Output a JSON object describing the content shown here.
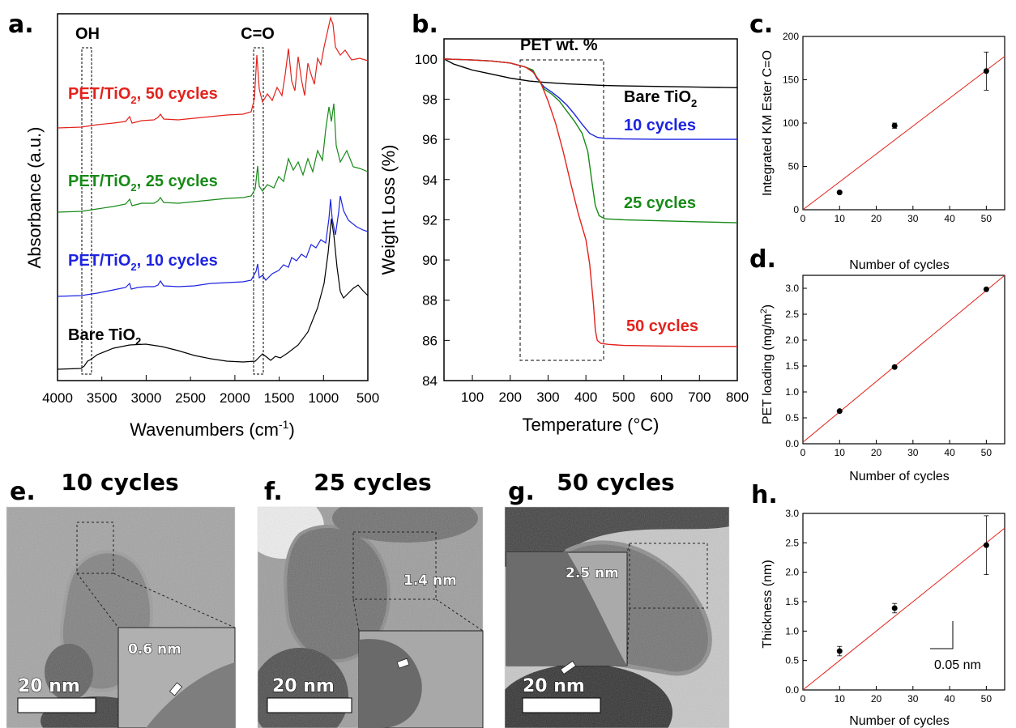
{
  "panel_labels": {
    "a": "a.",
    "b": "b.",
    "c": "c.",
    "d": "d.",
    "e": "e.",
    "f": "f.",
    "g": "g.",
    "h": "h."
  },
  "colors": {
    "red": "#e3221c",
    "green": "#178a17",
    "blue": "#1d24e0",
    "black": "#000000"
  },
  "chart_data": [
    {
      "panel": "a",
      "type": "line",
      "xlabel": "Wavenumbers (cm",
      "xlabel_sup": "-1",
      "xlabel_end": ")",
      "ylabel": "Absorbance (a.u.)",
      "xlim": [
        4000,
        500
      ],
      "xticks": [
        "4000",
        "3500",
        "3000",
        "2500",
        "2000",
        "1500",
        "1000",
        "500"
      ],
      "region_labels": [
        "OH",
        "C=O"
      ],
      "series": [
        {
          "name": "PET/TiO",
          "sub": "2",
          "suffix": ", 50 cycles",
          "color": "#e3221c"
        },
        {
          "name": "PET/TiO",
          "sub": "2",
          "suffix": ", 25 cycles",
          "color": "#178a17"
        },
        {
          "name": "PET/TiO",
          "sub": "2",
          "suffix": ", 10 cycles",
          "color": "#1d24e0"
        },
        {
          "name": "Bare TiO",
          "sub": "2",
          "suffix": "",
          "color": "#000000"
        }
      ]
    },
    {
      "panel": "b",
      "type": "line",
      "xlabel": "Temperature (°C)",
      "ylabel": "Weight Loss (%)",
      "xlim": [
        25,
        800
      ],
      "ylim": [
        84,
        101
      ],
      "xticks": [
        100,
        200,
        300,
        400,
        500,
        600,
        700,
        800
      ],
      "yticks": [
        84,
        86,
        88,
        90,
        92,
        94,
        96,
        98,
        100
      ],
      "box_label": "PET wt. %",
      "series": [
        {
          "name": "Bare TiO",
          "sub": "2",
          "color": "#000000",
          "x": [
            25,
            50,
            75,
            100,
            150,
            200,
            250,
            300,
            350,
            400,
            450,
            500,
            600,
            700,
            800
          ],
          "y": [
            100.0,
            99.75,
            99.6,
            99.45,
            99.25,
            99.05,
            98.9,
            98.82,
            98.76,
            98.72,
            98.68,
            98.66,
            98.63,
            98.6,
            98.57
          ]
        },
        {
          "name": "10 cycles",
          "color": "#1d24e0",
          "x": [
            25,
            100,
            150,
            200,
            240,
            260,
            270,
            290,
            310,
            330,
            350,
            370,
            390,
            410,
            430,
            450,
            500,
            600,
            700,
            800
          ],
          "y": [
            100.0,
            99.95,
            99.9,
            99.8,
            99.6,
            99.4,
            99.05,
            98.6,
            98.35,
            98.05,
            97.7,
            97.25,
            96.75,
            96.3,
            96.1,
            96.05,
            96.02,
            96.0,
            96.0,
            96.0
          ]
        },
        {
          "name": "25 cycles",
          "color": "#178a17",
          "x": [
            25,
            100,
            150,
            200,
            240,
            260,
            270,
            290,
            310,
            330,
            350,
            370,
            390,
            405,
            415,
            425,
            435,
            450,
            500,
            600,
            700,
            800
          ],
          "y": [
            100.0,
            99.95,
            99.9,
            99.8,
            99.6,
            99.45,
            99.1,
            98.5,
            98.25,
            97.9,
            97.4,
            96.9,
            96.3,
            95.4,
            94.0,
            92.7,
            92.2,
            92.05,
            92.0,
            91.95,
            91.9,
            91.85
          ]
        },
        {
          "name": "50 cycles",
          "color": "#e3221c",
          "x": [
            25,
            100,
            150,
            200,
            240,
            260,
            280,
            300,
            320,
            340,
            360,
            380,
            400,
            410,
            420,
            425,
            430,
            440,
            460,
            500,
            600,
            700,
            800
          ],
          "y": [
            100.0,
            99.95,
            99.9,
            99.8,
            99.6,
            99.35,
            98.85,
            97.9,
            96.8,
            95.4,
            93.8,
            92.3,
            91.0,
            89.8,
            87.8,
            86.5,
            86.0,
            85.85,
            85.8,
            85.75,
            85.72,
            85.7,
            85.7
          ]
        }
      ]
    },
    {
      "panel": "c",
      "type": "scatter",
      "xlabel": "Number of cycles",
      "ylabel": "Integrated KM Ester C=O",
      "xlim": [
        0,
        55
      ],
      "ylim": [
        0,
        200
      ],
      "xticks": [
        0,
        10,
        20,
        30,
        40,
        50
      ],
      "yticks": [
        0,
        50,
        100,
        150,
        200
      ],
      "x": [
        10,
        25,
        50
      ],
      "y": [
        20,
        97,
        160
      ],
      "err": [
        0,
        3,
        22
      ],
      "fit": {
        "x": [
          0,
          55
        ],
        "y": [
          0,
          177
        ]
      }
    },
    {
      "panel": "d",
      "type": "scatter",
      "xlabel": "Number of cycles",
      "ylabel": "PET loading (mg/m",
      "ylabel_sup": "2",
      "ylabel_end": ")",
      "xlim": [
        0,
        55
      ],
      "ylim": [
        0,
        3.25
      ],
      "xticks": [
        0,
        10,
        20,
        30,
        40,
        50
      ],
      "yticks": [
        "0.0",
        "0.5",
        "1.0",
        "1.5",
        "2.0",
        "2.5",
        "3.0"
      ],
      "x": [
        10,
        25,
        50
      ],
      "y": [
        0.63,
        1.48,
        2.98
      ],
      "fit": {
        "x": [
          0,
          55
        ],
        "y": [
          0.03,
          3.25
        ]
      }
    },
    {
      "panel": "h",
      "type": "scatter",
      "xlabel": "Number of cycles",
      "ylabel": "Thickness (nm)",
      "xlim": [
        0,
        55
      ],
      "ylim": [
        0,
        3.0
      ],
      "xticks": [
        0,
        10,
        20,
        30,
        40,
        50
      ],
      "yticks": [
        "0.0",
        "0.5",
        "1.0",
        "1.5",
        "2.0",
        "2.5",
        "3.0"
      ],
      "x": [
        10,
        25,
        50
      ],
      "y": [
        0.66,
        1.39,
        2.46
      ],
      "err": [
        0.08,
        0.08,
        0.5
      ],
      "fit": {
        "x": [
          0,
          55
        ],
        "y": [
          0.0,
          2.75
        ]
      },
      "slope_label": "0.05 nm"
    }
  ],
  "tem": [
    {
      "panel": "e",
      "title": "10 cycles",
      "scale": "20 nm",
      "thickness": "0.6 nm"
    },
    {
      "panel": "f",
      "title": "25 cycles",
      "scale": "20 nm",
      "thickness": "1.4 nm"
    },
    {
      "panel": "g",
      "title": "50 cycles",
      "scale": "20 nm",
      "thickness": "2.5 nm"
    }
  ]
}
